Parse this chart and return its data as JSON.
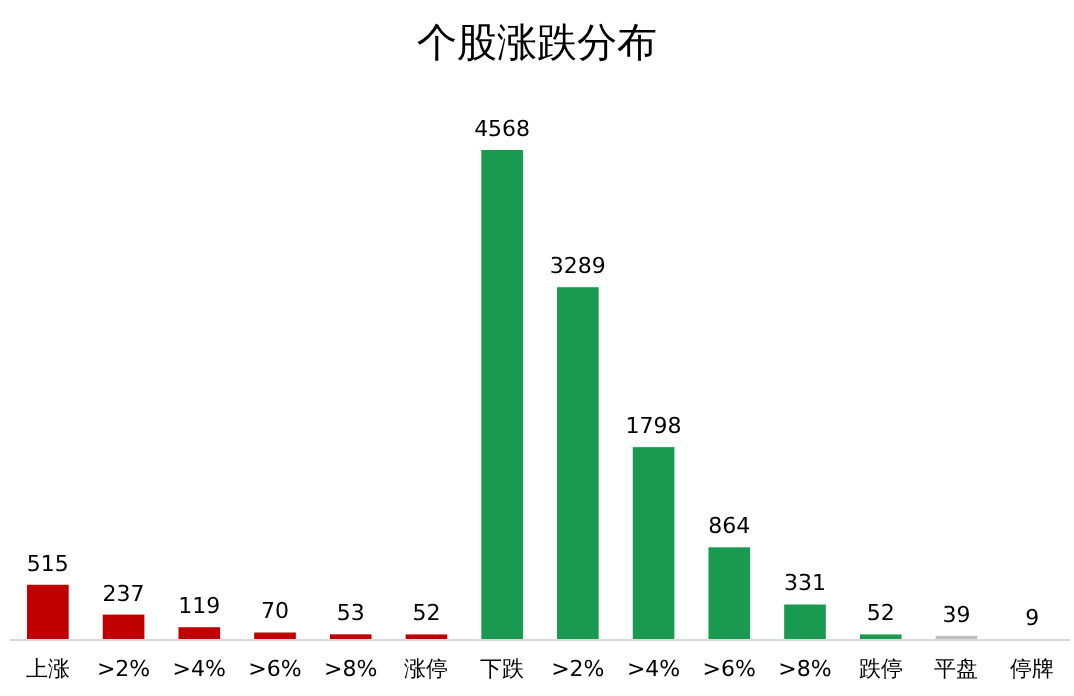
{
  "chart_data": {
    "type": "bar",
    "title": "个股涨跌分布",
    "categories": [
      "上涨",
      ">2%",
      ">4%",
      ">6%",
      ">8%",
      "涨停",
      "下跌",
      ">2%",
      ">4%",
      ">6%",
      ">8%",
      "跌停",
      "平盘",
      "停牌"
    ],
    "values": [
      515,
      237,
      119,
      70,
      53,
      52,
      4568,
      3289,
      1798,
      864,
      331,
      52,
      39,
      9
    ],
    "colors": [
      "#c00000",
      "#c00000",
      "#c00000",
      "#c00000",
      "#c00000",
      "#c00000",
      "#1a9a50",
      "#1a9a50",
      "#1a9a50",
      "#1a9a50",
      "#1a9a50",
      "#1a9a50",
      "#bfbfbf",
      "#bfbfbf"
    ],
    "data_labels": true
  }
}
